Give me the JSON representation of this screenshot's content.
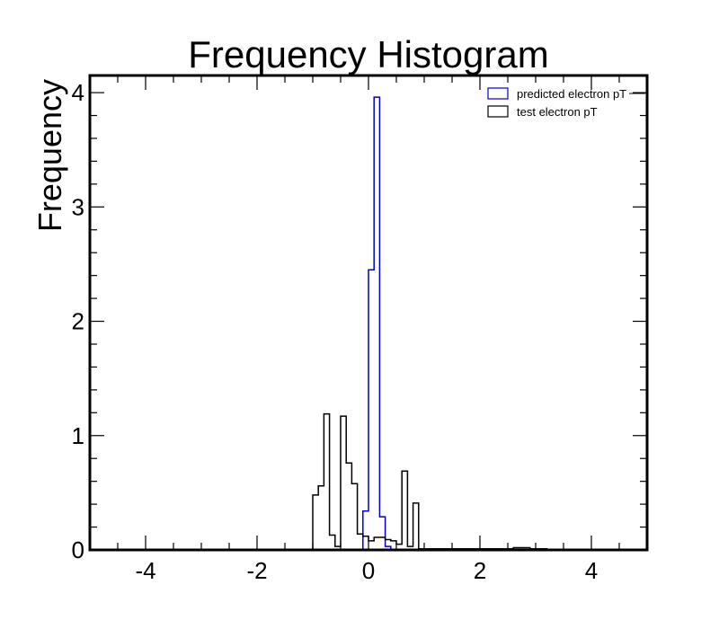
{
  "chart_data": {
    "type": "histogram",
    "title": "Frequency Histogram",
    "xlabel": "",
    "ylabel": "Frequency",
    "xlim": [
      -5,
      5
    ],
    "ylim": [
      0,
      4.15
    ],
    "x_ticks": [
      -4,
      -2,
      0,
      2,
      4
    ],
    "x_tick_labels": [
      "-4",
      "-2",
      "0",
      "2",
      "4"
    ],
    "y_ticks": [
      0,
      1,
      2,
      3,
      4
    ],
    "y_tick_labels": [
      "0",
      "1",
      "2",
      "3",
      "4"
    ],
    "grid": false,
    "legend_position": "top-right",
    "bin_edges": [
      -1.0,
      -0.9,
      -0.8,
      -0.7,
      -0.6,
      -0.5,
      -0.4,
      -0.3,
      -0.2,
      -0.1,
      0.0,
      0.1,
      0.2,
      0.3,
      0.4,
      0.5,
      0.6,
      0.7,
      0.8,
      0.9,
      1.0,
      1.1,
      1.2,
      1.3,
      1.4,
      1.5,
      1.6,
      1.7,
      1.8,
      1.9,
      2.0,
      2.1,
      2.2,
      2.3,
      2.4,
      2.5,
      2.6,
      2.7,
      2.8,
      2.9,
      3.0,
      3.1,
      3.2
    ],
    "series": [
      {
        "name": "predicted electron pT",
        "color": "#0000cc",
        "values": [
          0,
          0,
          0,
          0,
          0,
          0,
          0,
          0,
          0,
          0.34,
          2.45,
          3.96,
          0.29,
          0.03,
          0,
          0,
          0,
          0,
          0,
          0,
          0,
          0,
          0,
          0,
          0,
          0,
          0,
          0,
          0,
          0,
          0,
          0,
          0,
          0,
          0,
          0,
          0,
          0,
          0,
          0,
          0,
          0
        ]
      },
      {
        "name": "test electron pT",
        "color": "#000000",
        "values": [
          0.48,
          0.56,
          1.19,
          0.13,
          0.03,
          1.17,
          0.76,
          0.58,
          0.14,
          0.12,
          0.08,
          0.11,
          0.11,
          0.09,
          0.08,
          0.05,
          0.69,
          0.03,
          0.41,
          0.01,
          0.01,
          0.01,
          0.01,
          0.01,
          0.01,
          0.01,
          0.01,
          0.01,
          0.01,
          0.01,
          0.01,
          0.01,
          0.01,
          0.01,
          0.01,
          0.01,
          0.02,
          0.02,
          0.02,
          0.01,
          0.01,
          0.01
        ]
      }
    ]
  }
}
